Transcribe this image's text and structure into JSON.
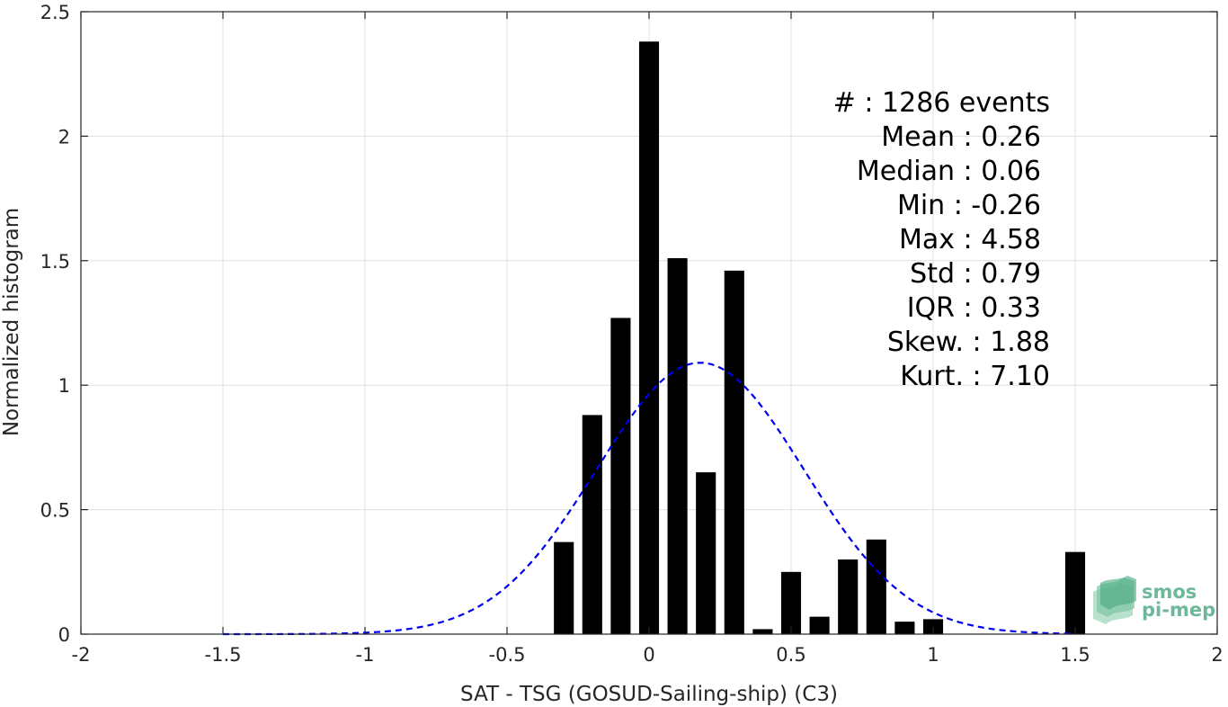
{
  "chart_data": {
    "type": "bar",
    "xlabel": "SAT - TSG (GOSUD-Sailing-ship) (C3)",
    "ylabel": "Normalized histogram",
    "xlim": [
      -2,
      2
    ],
    "ylim": [
      0,
      2.5
    ],
    "grid": true,
    "x_ticks": [
      {
        "value": -2,
        "label": "-2"
      },
      {
        "value": -1.5,
        "label": "-1.5"
      },
      {
        "value": -1,
        "label": "-1"
      },
      {
        "value": -0.5,
        "label": "-0.5"
      },
      {
        "value": 0,
        "label": "0"
      },
      {
        "value": 0.5,
        "label": "0.5"
      },
      {
        "value": 1,
        "label": "1"
      },
      {
        "value": 1.5,
        "label": "1.5"
      },
      {
        "value": 2,
        "label": "2"
      }
    ],
    "y_ticks": [
      {
        "value": 0,
        "label": "0"
      },
      {
        "value": 0.5,
        "label": "0.5"
      },
      {
        "value": 1,
        "label": "1"
      },
      {
        "value": 1.5,
        "label": "1.5"
      },
      {
        "value": 2,
        "label": "2"
      },
      {
        "value": 2.5,
        "label": "2.5"
      }
    ],
    "bars": {
      "color": "#000000",
      "bin_width": 0.1,
      "bar_width": 0.07,
      "x": [
        -0.3,
        -0.2,
        -0.1,
        0.0,
        0.1,
        0.2,
        0.3,
        0.4,
        0.5,
        0.6,
        0.7,
        0.8,
        0.9,
        1.0,
        1.5
      ],
      "values": [
        0.37,
        0.88,
        1.27,
        2.38,
        1.51,
        0.65,
        1.46,
        0.02,
        0.25,
        0.07,
        0.3,
        0.38,
        0.05,
        0.06,
        0.33
      ]
    },
    "fit_curve": {
      "type": "gaussian",
      "style": "dashed",
      "color": "#0000ee",
      "mean": 0.18,
      "peak": 1.09,
      "sigma": 0.365,
      "x_range": [
        -1.5,
        1.5
      ]
    },
    "stats": [
      {
        "label": "#  : 1286 events"
      },
      {
        "label": "Mean : 0.26"
      },
      {
        "label": "Median : 0.06"
      },
      {
        "label": "Min : -0.26"
      },
      {
        "label": "Max : 4.58"
      },
      {
        "label": "Std : 0.79"
      },
      {
        "label": "IQR : 0.33"
      },
      {
        "label": "Skew. : 1.88"
      },
      {
        "label": "Kurt. : 7.10"
      }
    ],
    "axis_color": "#262626",
    "grid_color": "#dfdfdf"
  },
  "logo": {
    "line1": "smos",
    "line2": "pi-mep",
    "color": "#6db89a"
  }
}
